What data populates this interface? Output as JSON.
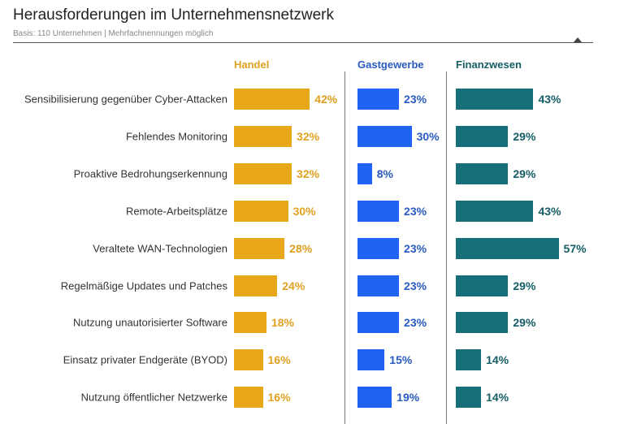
{
  "chart_data": {
    "type": "bar",
    "title": "Herausforderungen im Unternehmensnetzwerk",
    "subtitle": "Basis: 110 Unternehmen | Mehrfachnennungen möglich",
    "categories": [
      "Sensibilisierung gegenüber Cyber-Attacken",
      "Fehlendes Monitoring",
      "Proaktive Bedrohungserkennung",
      "Remote-Arbeitsplätze",
      "Veraltete WAN-Technologien",
      "Regelmäßige Updates und Patches",
      "Nutzung unautorisierter Software",
      "Einsatz privater Endgeräte (BYOD)",
      "Nutzung öffentlicher Netzwerke"
    ],
    "unit": "%",
    "series": [
      {
        "name": "Handel",
        "color": "#E8A619",
        "label_color": "#E0A020",
        "values": [
          42,
          32,
          32,
          30,
          28,
          24,
          18,
          16,
          16
        ]
      },
      {
        "name": "Gastgewerbe",
        "color": "#1F63F5",
        "label_color": "#2A5BC0",
        "values": [
          23,
          30,
          8,
          23,
          23,
          23,
          23,
          15,
          19
        ]
      },
      {
        "name": "Finanzwesen",
        "color": "#156E78",
        "label_color": "#155E66",
        "values": [
          43,
          29,
          29,
          43,
          57,
          29,
          29,
          14,
          14
        ]
      }
    ]
  }
}
